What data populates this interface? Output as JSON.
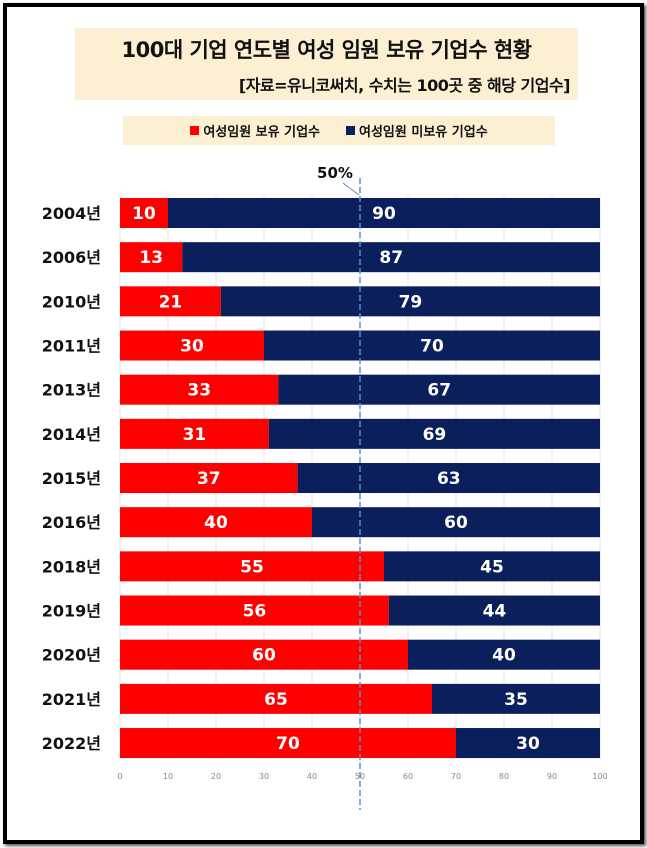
{
  "title": "100대 기업 연도별 여성 임원 보유 기업수 현황",
  "subtitle": "[자료=유니코써치, 수치는 100곳 중 해당 기업수]",
  "chart_data": {
    "type": "bar",
    "orientation": "horizontal",
    "stacked": true,
    "categories": [
      "2004년",
      "2006년",
      "2010년",
      "2011년",
      "2013년",
      "2014년",
      "2015년",
      "2016년",
      "2018년",
      "2019년",
      "2020년",
      "2021년",
      "2022년"
    ],
    "series": [
      {
        "name": "여성임원 보유 기업수",
        "color": "#ff0000",
        "values": [
          10,
          13,
          21,
          30,
          33,
          31,
          37,
          40,
          55,
          56,
          60,
          65,
          70
        ]
      },
      {
        "name": "여성임원 미보유 기업수",
        "color": "#0a1f5c",
        "values": [
          90,
          87,
          79,
          70,
          67,
          69,
          63,
          60,
          45,
          44,
          40,
          35,
          30
        ]
      }
    ],
    "xlim": [
      0,
      100
    ],
    "xticks": [
      "0",
      "10",
      "20",
      "30",
      "40",
      "50",
      "60",
      "70",
      "80",
      "90",
      "100"
    ],
    "grid": true,
    "legend": "top",
    "annotation": {
      "label": "50%",
      "x": 50
    }
  }
}
